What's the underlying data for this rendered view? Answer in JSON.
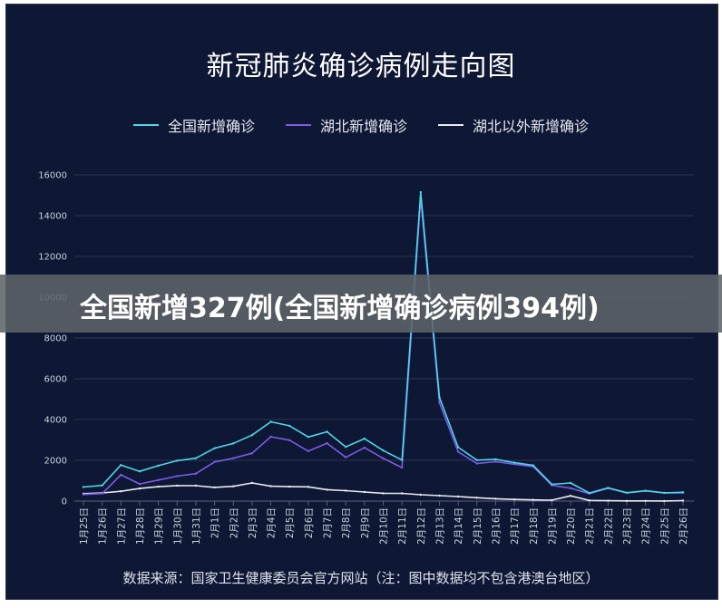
{
  "chart_data": {
    "type": "line",
    "title": "新冠肺炎确诊病例走向图",
    "xlabel": "",
    "ylabel": "",
    "ylim": [
      0,
      16000
    ],
    "yticks": [
      0,
      2000,
      4000,
      6000,
      8000,
      10000,
      12000,
      14000,
      16000
    ],
    "grid": true,
    "legend_position": "top",
    "categories": [
      "1月25日",
      "1月26日",
      "1月27日",
      "1月28日",
      "1月29日",
      "1月30日",
      "1月31日",
      "2月1日",
      "2月2日",
      "2月3日",
      "2月4日",
      "2月5日",
      "2月6日",
      "2月7日",
      "2月8日",
      "2月9日",
      "2月10日",
      "2月11日",
      "2月12日",
      "2月13日",
      "2月14日",
      "2月15日",
      "2月16日",
      "2月17日",
      "2月18日",
      "2月19日",
      "2月20日",
      "2月21日",
      "2月22日",
      "2月23日",
      "2月24日",
      "2月25日",
      "2月26日"
    ],
    "series": [
      {
        "name": "全国新增确诊",
        "color": "#4fd6e8",
        "values": [
          688,
          769,
          1771,
          1459,
          1737,
          1982,
          2102,
          2590,
          2829,
          3235,
          3887,
          3694,
          3143,
          3399,
          2656,
          3062,
          2478,
          2015,
          15152,
          5090,
          2641,
          2009,
          2048,
          1886,
          1749,
          820,
          889,
          397,
          648,
          409,
          508,
          406,
          433
        ]
      },
      {
        "name": "湖北新增确诊",
        "color": "#7b5ce8",
        "values": [
          323,
          371,
          1291,
          840,
          1032,
          1220,
          1347,
          1921,
          2103,
          2345,
          3156,
          2987,
          2447,
          2841,
          2147,
          2618,
          2097,
          1638,
          14840,
          4823,
          2420,
          1843,
          1933,
          1807,
          1693,
          775,
          631,
          366,
          630,
          398,
          499,
          401,
          409
        ]
      },
      {
        "name": "湖北以外新增确诊",
        "color": "#e8ebf2",
        "values": [
          365,
          398,
          480,
          619,
          705,
          762,
          755,
          669,
          726,
          890,
          731,
          707,
          696,
          558,
          509,
          444,
          381,
          377,
          312,
          267,
          221,
          166,
          115,
          79,
          56,
          45,
          258,
          31,
          18,
          11,
          9,
          5,
          24
        ]
      }
    ]
  },
  "banner": {
    "text": "全国新增327例(全国新增确诊病例394例)"
  },
  "source": {
    "text": "数据来源：国家卫生健康委员会官方网站（注：图中数据均不包含港澳台地区）"
  }
}
